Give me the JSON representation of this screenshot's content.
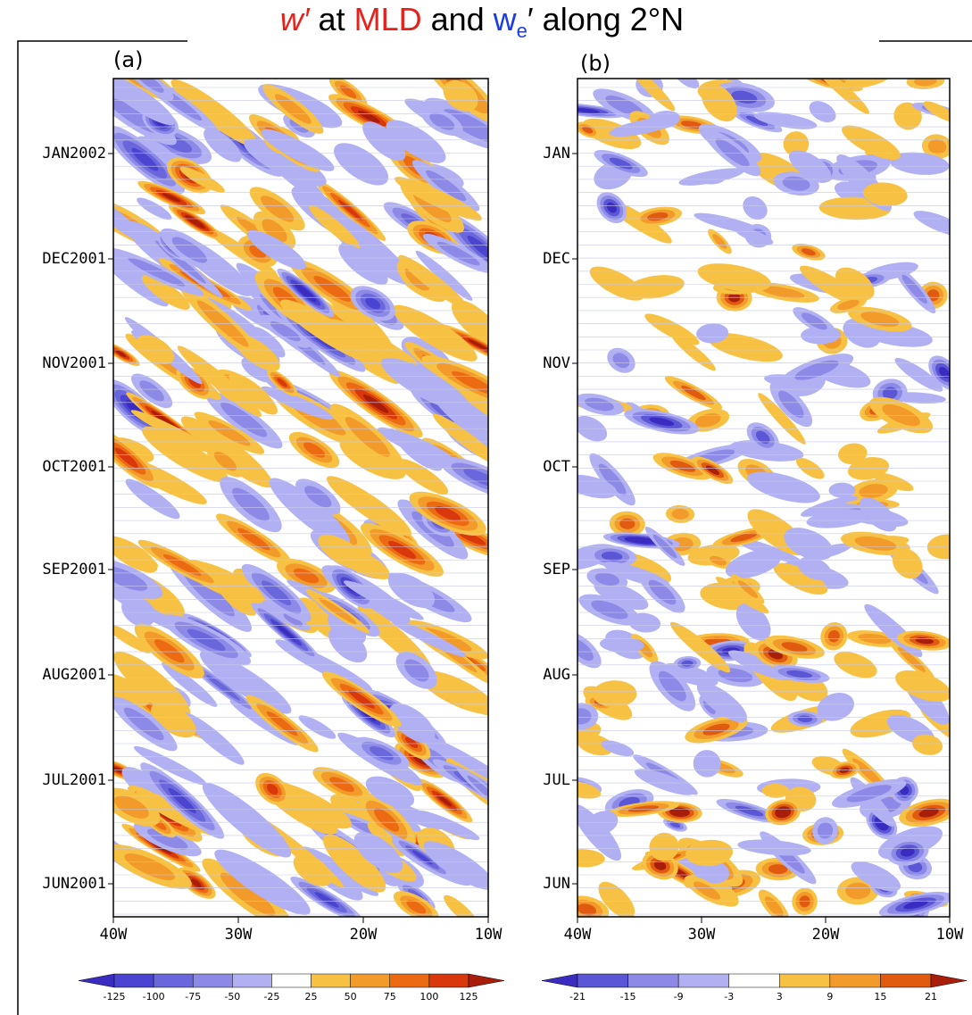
{
  "figure_title": [
    {
      "text": "w′",
      "color": "#e8201a",
      "italic": true
    },
    {
      "text": " at ",
      "color": "#000000"
    },
    {
      "text": "MLD",
      "color": "#e8201a"
    },
    {
      "text": " and ",
      "color": "#000000"
    },
    {
      "text": "w",
      "color": "#1a3de8"
    },
    {
      "text": "e",
      "color": "#1a3de8",
      "sub": true
    },
    {
      "text": "′ along 2°N",
      "color": "#000000"
    }
  ],
  "chart_data": [
    {
      "type": "heatmap",
      "panel_label": "(a)",
      "xlim": [
        -40,
        -10
      ],
      "xticks": [
        {
          "value": -40,
          "label": "40W"
        },
        {
          "value": -30,
          "label": "30W"
        },
        {
          "value": -20,
          "label": "20W"
        },
        {
          "value": -10,
          "label": "10W"
        }
      ],
      "y_labels": [
        "JUN2001",
        "JUL2001",
        "AUG2001",
        "SEP2001",
        "OCT2001",
        "NOV2001",
        "DEC2001",
        "JAN2002"
      ],
      "levels": [
        -125,
        -100,
        -75,
        -50,
        -25,
        25,
        50,
        75,
        100,
        125
      ],
      "colors": [
        "#3a2cc0",
        "#4a44d0",
        "#6a66dc",
        "#8c8ae6",
        "#b0b0f2",
        "#ffffff",
        "#f7c244",
        "#f29a2a",
        "#ec6b12",
        "#d8380c",
        "#a81e0a"
      ]
    },
    {
      "type": "heatmap",
      "panel_label": "(b)",
      "xlim": [
        -40,
        -10
      ],
      "xticks": [
        {
          "value": -40,
          "label": "40W"
        },
        {
          "value": -30,
          "label": "30W"
        },
        {
          "value": -20,
          "label": "20W"
        },
        {
          "value": -10,
          "label": "10W"
        }
      ],
      "y_labels": [
        "JUN",
        "JUL",
        "AUG",
        "SEP",
        "OCT",
        "NOV",
        "DEC",
        "JAN"
      ],
      "levels": [
        -21,
        -15,
        -9,
        -3,
        3,
        9,
        15,
        21
      ],
      "colors": [
        "#3a2cc0",
        "#5a56d6",
        "#8c8ae6",
        "#b0b0f2",
        "#ffffff",
        "#f7c244",
        "#f29a2a",
        "#e05a10",
        "#a81e0a"
      ]
    }
  ]
}
